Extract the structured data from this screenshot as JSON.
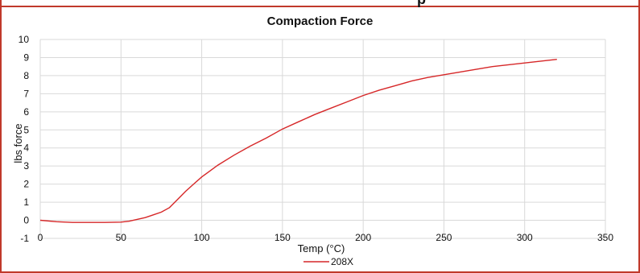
{
  "page": {
    "title_fragment": "p"
  },
  "chart_data": {
    "type": "line",
    "title": "Compaction Force",
    "xlabel": "Temp (°C)",
    "ylabel": "lbs force",
    "xlim": [
      0,
      350
    ],
    "ylim": [
      -1,
      10
    ],
    "xticks": [
      0,
      50,
      100,
      150,
      200,
      250,
      300,
      350
    ],
    "yticks": [
      -1,
      0,
      1,
      2,
      3,
      4,
      5,
      6,
      7,
      8,
      9,
      10
    ],
    "grid": true,
    "legend": "bottom",
    "colors": {
      "series": "#d62728",
      "grid": "#d9d9d9",
      "frame": "#c0392b"
    },
    "series": [
      {
        "name": "208X",
        "x": [
          0,
          10,
          20,
          30,
          40,
          50,
          55,
          60,
          65,
          70,
          75,
          80,
          85,
          90,
          95,
          100,
          110,
          120,
          130,
          140,
          150,
          160,
          170,
          180,
          190,
          200,
          210,
          220,
          230,
          240,
          250,
          260,
          270,
          280,
          290,
          300,
          310,
          320
        ],
        "y": [
          0.0,
          -0.08,
          -0.12,
          -0.12,
          -0.12,
          -0.1,
          -0.05,
          0.05,
          0.15,
          0.3,
          0.45,
          0.7,
          1.15,
          1.6,
          2.0,
          2.4,
          3.05,
          3.6,
          4.1,
          4.55,
          5.05,
          5.45,
          5.85,
          6.2,
          6.55,
          6.9,
          7.2,
          7.45,
          7.7,
          7.9,
          8.05,
          8.2,
          8.35,
          8.5,
          8.6,
          8.7,
          8.8,
          8.9
        ]
      }
    ]
  }
}
